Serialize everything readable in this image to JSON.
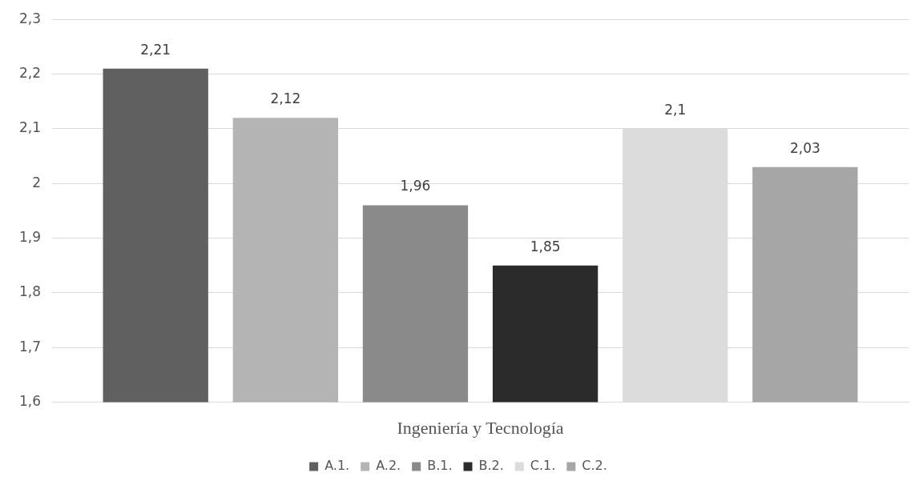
{
  "chart_data": {
    "type": "bar",
    "categories": [
      "Ingeniería y Tecnología"
    ],
    "series": [
      {
        "name": "A.1.",
        "color": "#606060",
        "values": [
          2.21
        ],
        "value_labels": [
          "2,21"
        ]
      },
      {
        "name": "A.2.",
        "color": "#b4b4b4",
        "values": [
          2.12
        ],
        "value_labels": [
          "2,12"
        ]
      },
      {
        "name": "B.1.",
        "color": "#8a8a8a",
        "values": [
          1.96
        ],
        "value_labels": [
          "1,96"
        ]
      },
      {
        "name": "B.2.",
        "color": "#2b2b2b",
        "values": [
          1.85
        ],
        "value_labels": [
          "1,85"
        ]
      },
      {
        "name": "C.1.",
        "color": "#dcdcdc",
        "values": [
          2.1
        ],
        "value_labels": [
          "2,1"
        ]
      },
      {
        "name": "C.2.",
        "color": "#a6a6a6",
        "values": [
          2.03
        ],
        "value_labels": [
          "2,03"
        ]
      }
    ],
    "ylim": [
      1.6,
      2.3
    ],
    "yticks": [
      {
        "value": 1.6,
        "label": "1,6"
      },
      {
        "value": 1.7,
        "label": "1,7"
      },
      {
        "value": 1.8,
        "label": "1,8"
      },
      {
        "value": 1.9,
        "label": "1,9"
      },
      {
        "value": 2,
        "label": "2"
      },
      {
        "value": 2.1,
        "label": "2,1"
      },
      {
        "value": 2.2,
        "label": "2,2"
      },
      {
        "value": 2.3,
        "label": "2,3"
      }
    ],
    "grid": "y",
    "legend": "bottom"
  }
}
